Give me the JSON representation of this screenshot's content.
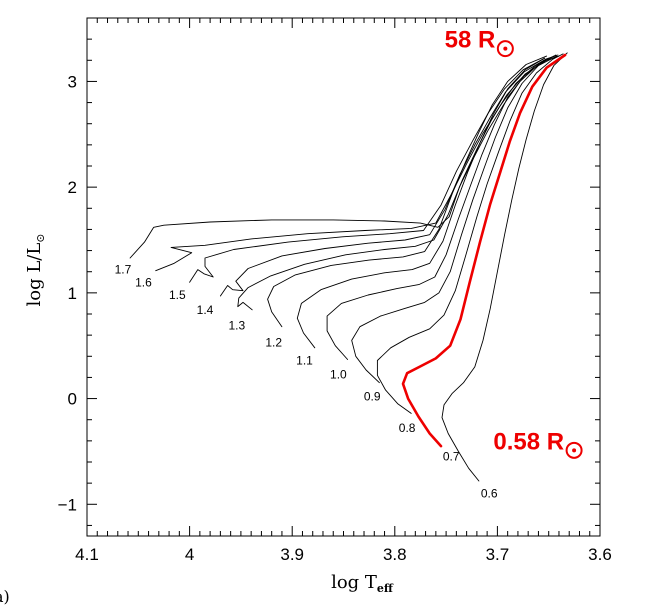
{
  "chart_data": {
    "type": "line",
    "title": "",
    "xlabel": "log T",
    "xlabel_sub": "eff",
    "ylabel": "log L/L",
    "ylabel_sub": "⊙",
    "xlim": [
      4.1,
      3.6
    ],
    "ylim": [
      -1.3,
      3.6
    ],
    "x_reversed": true,
    "x_ticks": [
      4.1,
      4.0,
      3.9,
      3.8,
      3.7,
      3.6
    ],
    "x_tick_labels": [
      "4.1",
      "4",
      "3.9",
      "3.8",
      "3.7",
      "3.6"
    ],
    "y_ticks": [
      -1,
      0,
      1,
      2,
      3
    ],
    "y_tick_labels": [
      "−1",
      "0",
      "1",
      "2",
      "3"
    ],
    "grid": false,
    "panel_label": "a)",
    "highlight_color": "#ee0000",
    "line_color": "#000000",
    "annotations": [
      {
        "text": "58 R",
        "x": 3.702,
        "y": 3.32
      },
      {
        "text": "0.58 R",
        "x": 3.635,
        "y": -0.48
      }
    ],
    "tracks": [
      {
        "name": "0.6",
        "label_x": 3.708,
        "label_y": -0.9,
        "points": [
          [
            3.718,
            -0.78
          ],
          [
            3.728,
            -0.66
          ],
          [
            3.738,
            -0.5
          ],
          [
            3.748,
            -0.33
          ],
          [
            3.754,
            -0.18
          ],
          [
            3.752,
            -0.06
          ],
          [
            3.744,
            0.05
          ],
          [
            3.733,
            0.15
          ],
          [
            3.722,
            0.3
          ],
          [
            3.714,
            0.55
          ],
          [
            3.707,
            0.85
          ],
          [
            3.7,
            1.2
          ],
          [
            3.693,
            1.55
          ],
          [
            3.686,
            1.88
          ],
          [
            3.679,
            2.18
          ],
          [
            3.672,
            2.45
          ],
          [
            3.664,
            2.72
          ],
          [
            3.655,
            2.97
          ],
          [
            3.645,
            3.15
          ],
          [
            3.632,
            3.27
          ]
        ]
      },
      {
        "name": "0.7",
        "label_x": 3.745,
        "label_y": -0.55,
        "red": true,
        "points": [
          [
            3.755,
            -0.45
          ],
          [
            3.766,
            -0.33
          ],
          [
            3.777,
            -0.17
          ],
          [
            3.787,
            0.0
          ],
          [
            3.792,
            0.14
          ],
          [
            3.788,
            0.24
          ],
          [
            3.776,
            0.3
          ],
          [
            3.76,
            0.38
          ],
          [
            3.746,
            0.5
          ],
          [
            3.736,
            0.75
          ],
          [
            3.727,
            1.1
          ],
          [
            3.717,
            1.48
          ],
          [
            3.707,
            1.84
          ],
          [
            3.697,
            2.15
          ],
          [
            3.688,
            2.43
          ],
          [
            3.678,
            2.7
          ],
          [
            3.666,
            2.95
          ],
          [
            3.652,
            3.13
          ],
          [
            3.634,
            3.25
          ]
        ]
      },
      {
        "name": "0.8",
        "label_x": 3.788,
        "label_y": -0.28,
        "points": [
          [
            3.784,
            -0.14
          ],
          [
            3.797,
            -0.05
          ],
          [
            3.809,
            0.08
          ],
          [
            3.817,
            0.22
          ],
          [
            3.817,
            0.36
          ],
          [
            3.804,
            0.48
          ],
          [
            3.786,
            0.58
          ],
          [
            3.766,
            0.66
          ],
          [
            3.752,
            0.79
          ],
          [
            3.741,
            1.02
          ],
          [
            3.731,
            1.35
          ],
          [
            3.72,
            1.72
          ],
          [
            3.71,
            2.03
          ],
          [
            3.699,
            2.33
          ],
          [
            3.688,
            2.62
          ],
          [
            3.676,
            2.89
          ],
          [
            3.662,
            3.08
          ],
          [
            3.646,
            3.21
          ],
          [
            3.636,
            3.26
          ]
        ]
      },
      {
        "name": "0.9",
        "label_x": 3.822,
        "label_y": 0.02,
        "points": [
          [
            3.815,
            0.15
          ],
          [
            3.828,
            0.27
          ],
          [
            3.838,
            0.4
          ],
          [
            3.842,
            0.55
          ],
          [
            3.834,
            0.68
          ],
          [
            3.814,
            0.78
          ],
          [
            3.791,
            0.85
          ],
          [
            3.771,
            0.91
          ],
          [
            3.757,
            1.0
          ],
          [
            3.746,
            1.2
          ],
          [
            3.735,
            1.55
          ],
          [
            3.724,
            1.88
          ],
          [
            3.713,
            2.18
          ],
          [
            3.702,
            2.47
          ],
          [
            3.69,
            2.75
          ],
          [
            3.676,
            2.98
          ],
          [
            3.66,
            3.15
          ],
          [
            3.642,
            3.24
          ]
        ]
      },
      {
        "name": "1.0",
        "label_x": 3.855,
        "label_y": 0.23,
        "points": [
          [
            3.846,
            0.37
          ],
          [
            3.858,
            0.5
          ],
          [
            3.866,
            0.64
          ],
          [
            3.866,
            0.78
          ],
          [
            3.852,
            0.9
          ],
          [
            3.826,
            0.98
          ],
          [
            3.798,
            1.04
          ],
          [
            3.776,
            1.08
          ],
          [
            3.761,
            1.15
          ],
          [
            3.75,
            1.36
          ],
          [
            3.738,
            1.7
          ],
          [
            3.726,
            2.02
          ],
          [
            3.715,
            2.31
          ],
          [
            3.703,
            2.59
          ],
          [
            3.69,
            2.85
          ],
          [
            3.674,
            3.05
          ],
          [
            3.656,
            3.19
          ],
          [
            3.644,
            3.24
          ]
        ]
      },
      {
        "name": "1.1",
        "label_x": 3.888,
        "label_y": 0.36,
        "points": [
          [
            3.878,
            0.48
          ],
          [
            3.889,
            0.62
          ],
          [
            3.895,
            0.76
          ],
          [
            3.891,
            0.9
          ],
          [
            3.872,
            1.03
          ],
          [
            3.842,
            1.13
          ],
          [
            3.81,
            1.19
          ],
          [
            3.783,
            1.22
          ],
          [
            3.766,
            1.28
          ],
          [
            3.753,
            1.49
          ],
          [
            3.741,
            1.83
          ],
          [
            3.729,
            2.14
          ],
          [
            3.717,
            2.42
          ],
          [
            3.704,
            2.69
          ],
          [
            3.69,
            2.93
          ],
          [
            3.673,
            3.11
          ],
          [
            3.654,
            3.22
          ]
        ]
      },
      {
        "name": "1.2",
        "label_x": 3.918,
        "label_y": 0.53,
        "points": [
          [
            3.91,
            0.68
          ],
          [
            3.92,
            0.82
          ],
          [
            3.924,
            0.94
          ],
          [
            3.918,
            1.06
          ],
          [
            3.897,
            1.17
          ],
          [
            3.862,
            1.26
          ],
          [
            3.825,
            1.31
          ],
          [
            3.792,
            1.34
          ],
          [
            3.771,
            1.39
          ],
          [
            3.757,
            1.6
          ],
          [
            3.744,
            1.94
          ],
          [
            3.731,
            2.24
          ],
          [
            3.718,
            2.52
          ],
          [
            3.705,
            2.78
          ],
          [
            3.69,
            3.0
          ],
          [
            3.672,
            3.16
          ],
          [
            3.652,
            3.24
          ]
        ]
      },
      {
        "name": "1.3",
        "label_x": 3.954,
        "label_y": 0.69,
        "points": [
          [
            3.939,
            0.84
          ],
          [
            3.948,
            0.91
          ],
          [
            3.953,
            0.87
          ],
          [
            3.952,
            0.95
          ],
          [
            3.943,
            1.05
          ],
          [
            3.921,
            1.16
          ],
          [
            3.888,
            1.27
          ],
          [
            3.848,
            1.36
          ],
          [
            3.81,
            1.41
          ],
          [
            3.78,
            1.44
          ],
          [
            3.762,
            1.5
          ],
          [
            3.748,
            1.74
          ],
          [
            3.734,
            2.07
          ],
          [
            3.72,
            2.36
          ],
          [
            3.706,
            2.63
          ],
          [
            3.691,
            2.87
          ],
          [
            3.673,
            3.07
          ],
          [
            3.652,
            3.2
          ],
          [
            3.64,
            3.24
          ]
        ]
      },
      {
        "name": "1.4",
        "label_x": 3.985,
        "label_y": 0.84,
        "points": [
          [
            3.97,
            0.97
          ],
          [
            3.963,
            1.07
          ],
          [
            3.958,
            1.03
          ],
          [
            3.948,
            1.02
          ],
          [
            3.955,
            1.11
          ],
          [
            3.943,
            1.23
          ],
          [
            3.91,
            1.35
          ],
          [
            3.868,
            1.42
          ],
          [
            3.826,
            1.47
          ],
          [
            3.79,
            1.5
          ],
          [
            3.766,
            1.55
          ],
          [
            3.751,
            1.79
          ],
          [
            3.737,
            2.11
          ],
          [
            3.722,
            2.4
          ],
          [
            3.707,
            2.66
          ],
          [
            3.692,
            2.9
          ],
          [
            3.674,
            3.09
          ],
          [
            3.653,
            3.21
          ],
          [
            3.641,
            3.25
          ]
        ]
      },
      {
        "name": "1.5",
        "label_x": 4.012,
        "label_y": 0.98,
        "points": [
          [
            4.0,
            1.1
          ],
          [
            3.992,
            1.22
          ],
          [
            3.986,
            1.18
          ],
          [
            3.977,
            1.15
          ],
          [
            3.985,
            1.25
          ],
          [
            3.985,
            1.33
          ],
          [
            3.957,
            1.41
          ],
          [
            3.904,
            1.48
          ],
          [
            3.851,
            1.53
          ],
          [
            3.805,
            1.56
          ],
          [
            3.772,
            1.59
          ],
          [
            3.755,
            1.83
          ],
          [
            3.74,
            2.15
          ],
          [
            3.724,
            2.44
          ],
          [
            3.709,
            2.7
          ],
          [
            3.693,
            2.93
          ],
          [
            3.675,
            3.11
          ],
          [
            3.654,
            3.22
          ]
        ]
      },
      {
        "name": "1.6",
        "label_x": 4.045,
        "label_y": 1.1,
        "points": [
          [
            4.033,
            1.21
          ],
          [
            4.015,
            1.28
          ],
          [
            3.998,
            1.38
          ],
          [
            4.018,
            1.43
          ],
          [
            3.985,
            1.45
          ],
          [
            3.94,
            1.51
          ],
          [
            3.885,
            1.56
          ],
          [
            3.829,
            1.59
          ],
          [
            3.784,
            1.61
          ],
          [
            3.76,
            1.66
          ],
          [
            3.745,
            1.93
          ],
          [
            3.729,
            2.24
          ],
          [
            3.714,
            2.51
          ],
          [
            3.698,
            2.76
          ],
          [
            3.682,
            2.98
          ],
          [
            3.663,
            3.15
          ],
          [
            3.645,
            3.24
          ]
        ]
      },
      {
        "name": "1.7",
        "label_x": 4.065,
        "label_y": 1.22,
        "points": [
          [
            4.058,
            1.33
          ],
          [
            4.044,
            1.48
          ],
          [
            4.035,
            1.62
          ],
          [
            4.025,
            1.64
          ],
          [
            3.98,
            1.67
          ],
          [
            3.92,
            1.69
          ],
          [
            3.86,
            1.69
          ],
          [
            3.81,
            1.68
          ],
          [
            3.775,
            1.66
          ],
          [
            3.758,
            1.62
          ],
          [
            3.747,
            1.72
          ],
          [
            3.737,
            2.0
          ],
          [
            3.723,
            2.28
          ],
          [
            3.709,
            2.54
          ],
          [
            3.694,
            2.78
          ],
          [
            3.678,
            3.0
          ],
          [
            3.66,
            3.16
          ],
          [
            3.643,
            3.25
          ]
        ]
      }
    ]
  }
}
